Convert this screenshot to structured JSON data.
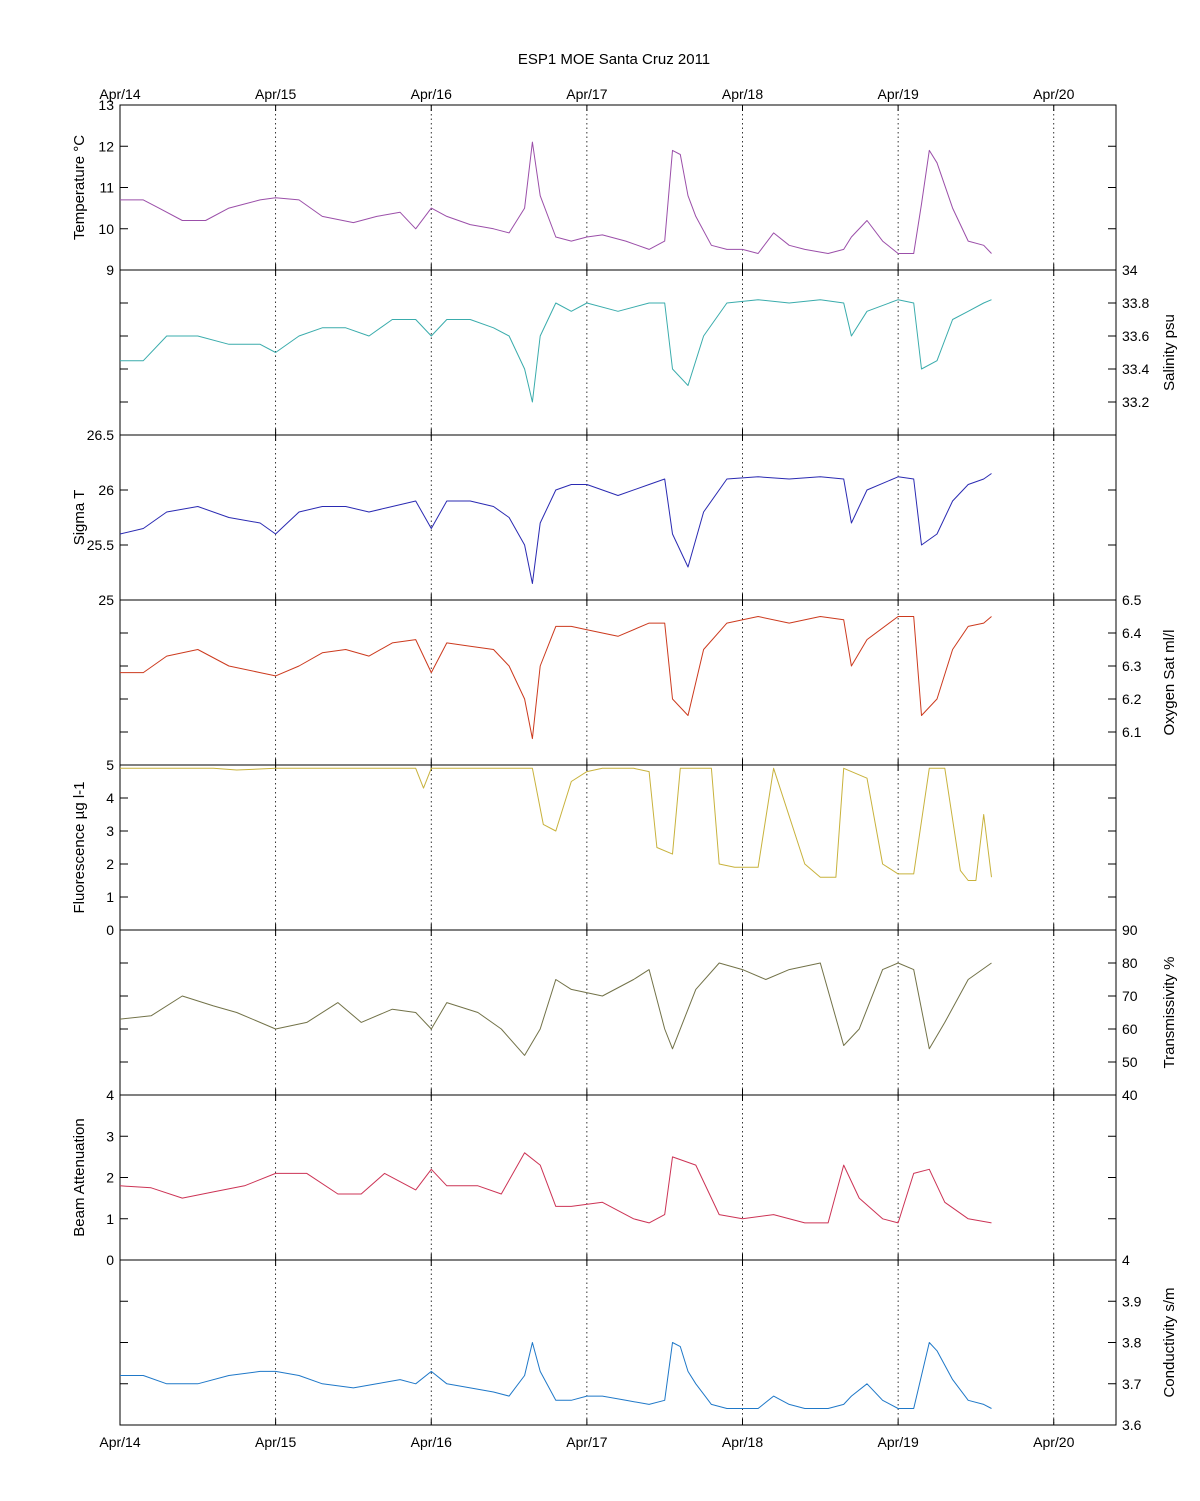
{
  "chart_data": {
    "type": "line",
    "title": "ESP1 MOE Santa Cruz   2011",
    "x_tick_labels": [
      "Apr/14",
      "Apr/15",
      "Apr/16",
      "Apr/17",
      "Apr/18",
      "Apr/19",
      "Apr/20"
    ],
    "x_range_days": [
      0,
      6.4
    ],
    "grid": "vertical dotted at each day",
    "panels": [
      {
        "id": "temperature",
        "ylabel": "Temperature °C",
        "axis_side": "left",
        "ylim": [
          9,
          13
        ],
        "ticks": [
          9,
          10,
          11,
          12,
          13
        ],
        "color": "#9b4fa9",
        "x": [
          0,
          0.15,
          0.25,
          0.4,
          0.55,
          0.7,
          0.8,
          0.9,
          1.0,
          1.15,
          1.3,
          1.5,
          1.65,
          1.8,
          1.9,
          2.0,
          2.1,
          2.25,
          2.4,
          2.5,
          2.6,
          2.65,
          2.7,
          2.8,
          2.9,
          3.0,
          3.1,
          3.25,
          3.4,
          3.5,
          3.55,
          3.6,
          3.65,
          3.7,
          3.8,
          3.9,
          4.0,
          4.1,
          4.2,
          4.3,
          4.4,
          4.55,
          4.65,
          4.7,
          4.8,
          4.9,
          5.0,
          5.1,
          5.15,
          5.2,
          5.25,
          5.35,
          5.45,
          5.55,
          5.6
        ],
        "y": [
          10.7,
          10.7,
          10.5,
          10.2,
          10.2,
          10.5,
          10.6,
          10.7,
          10.75,
          10.7,
          10.3,
          10.15,
          10.3,
          10.4,
          10.0,
          10.5,
          10.3,
          10.1,
          10.0,
          9.9,
          10.5,
          12.1,
          10.8,
          9.8,
          9.7,
          9.8,
          9.85,
          9.7,
          9.5,
          9.7,
          11.9,
          11.8,
          10.8,
          10.3,
          9.6,
          9.5,
          9.5,
          9.4,
          9.9,
          9.6,
          9.5,
          9.4,
          9.5,
          9.8,
          10.2,
          9.7,
          9.4,
          9.4,
          10.6,
          11.9,
          11.6,
          10.5,
          9.7,
          9.6,
          9.4
        ]
      },
      {
        "id": "salinity",
        "ylabel": "Salinity psu",
        "axis_side": "right",
        "ylim": [
          33,
          34
        ],
        "ticks": [
          33.2,
          33.4,
          33.6,
          33.8,
          34
        ],
        "color": "#3aacac",
        "x": [
          0,
          0.15,
          0.3,
          0.5,
          0.7,
          0.9,
          1.0,
          1.15,
          1.3,
          1.45,
          1.6,
          1.75,
          1.9,
          2.0,
          2.1,
          2.25,
          2.4,
          2.5,
          2.6,
          2.65,
          2.7,
          2.8,
          2.9,
          3.0,
          3.2,
          3.4,
          3.5,
          3.55,
          3.65,
          3.75,
          3.9,
          4.1,
          4.3,
          4.5,
          4.65,
          4.7,
          4.8,
          5.0,
          5.1,
          5.15,
          5.25,
          5.35,
          5.45,
          5.55,
          5.6
        ],
        "y": [
          33.45,
          33.45,
          33.6,
          33.6,
          33.55,
          33.55,
          33.5,
          33.6,
          33.65,
          33.65,
          33.6,
          33.7,
          33.7,
          33.6,
          33.7,
          33.7,
          33.65,
          33.6,
          33.4,
          33.2,
          33.6,
          33.8,
          33.75,
          33.8,
          33.75,
          33.8,
          33.8,
          33.4,
          33.3,
          33.6,
          33.8,
          33.82,
          33.8,
          33.82,
          33.8,
          33.6,
          33.75,
          33.82,
          33.8,
          33.4,
          33.45,
          33.7,
          33.75,
          33.8,
          33.82
        ]
      },
      {
        "id": "sigma-t",
        "ylabel": "Sigma T",
        "axis_side": "left",
        "ylim": [
          25,
          26.5
        ],
        "ticks": [
          25,
          25.5,
          26,
          26.5
        ],
        "color": "#2a2ab2",
        "x": [
          0,
          0.15,
          0.3,
          0.5,
          0.7,
          0.9,
          1.0,
          1.15,
          1.3,
          1.45,
          1.6,
          1.75,
          1.9,
          2.0,
          2.1,
          2.25,
          2.4,
          2.5,
          2.6,
          2.65,
          2.7,
          2.8,
          2.9,
          3.0,
          3.2,
          3.4,
          3.5,
          3.55,
          3.65,
          3.75,
          3.9,
          4.1,
          4.3,
          4.5,
          4.65,
          4.7,
          4.8,
          5.0,
          5.1,
          5.15,
          5.25,
          5.35,
          5.45,
          5.55,
          5.6
        ],
        "y": [
          25.6,
          25.65,
          25.8,
          25.85,
          25.75,
          25.7,
          25.6,
          25.8,
          25.85,
          25.85,
          25.8,
          25.85,
          25.9,
          25.65,
          25.9,
          25.9,
          25.85,
          25.75,
          25.5,
          25.15,
          25.7,
          26.0,
          26.05,
          26.05,
          25.95,
          26.05,
          26.1,
          25.6,
          25.3,
          25.8,
          26.1,
          26.12,
          26.1,
          26.12,
          26.1,
          25.7,
          26.0,
          26.12,
          26.1,
          25.5,
          25.6,
          25.9,
          26.05,
          26.1,
          26.15
        ]
      },
      {
        "id": "oxygen",
        "ylabel": "Oxygen Sat ml/l",
        "axis_side": "right",
        "ylim": [
          6,
          6.5
        ],
        "ticks": [
          6.1,
          6.2,
          6.3,
          6.4,
          6.5
        ],
        "color": "#cc3a1e",
        "x": [
          0,
          0.15,
          0.3,
          0.5,
          0.7,
          0.9,
          1.0,
          1.15,
          1.3,
          1.45,
          1.6,
          1.75,
          1.9,
          2.0,
          2.1,
          2.25,
          2.4,
          2.5,
          2.6,
          2.65,
          2.7,
          2.8,
          2.9,
          3.0,
          3.2,
          3.4,
          3.5,
          3.55,
          3.65,
          3.75,
          3.9,
          4.1,
          4.3,
          4.5,
          4.65,
          4.7,
          4.8,
          5.0,
          5.1,
          5.15,
          5.25,
          5.35,
          5.45,
          5.55,
          5.6
        ],
        "y": [
          6.28,
          6.28,
          6.33,
          6.35,
          6.3,
          6.28,
          6.27,
          6.3,
          6.34,
          6.35,
          6.33,
          6.37,
          6.38,
          6.28,
          6.37,
          6.36,
          6.35,
          6.3,
          6.2,
          6.08,
          6.3,
          6.42,
          6.42,
          6.41,
          6.39,
          6.43,
          6.43,
          6.2,
          6.15,
          6.35,
          6.43,
          6.45,
          6.43,
          6.45,
          6.44,
          6.3,
          6.38,
          6.45,
          6.45,
          6.15,
          6.2,
          6.35,
          6.42,
          6.43,
          6.45
        ]
      },
      {
        "id": "fluorescence",
        "ylabel": "Fluorescence µg l-1",
        "axis_side": "left",
        "ylim": [
          0,
          5
        ],
        "ticks": [
          0,
          1,
          2,
          3,
          4,
          5
        ],
        "color": "#c8b23c",
        "x": [
          0,
          0.6,
          0.75,
          1.0,
          1.9,
          1.95,
          2.0,
          2.5,
          2.65,
          2.72,
          2.8,
          2.9,
          3.0,
          3.1,
          3.3,
          3.4,
          3.45,
          3.55,
          3.6,
          3.8,
          3.85,
          3.95,
          4.1,
          4.2,
          4.4,
          4.5,
          4.6,
          4.65,
          4.8,
          4.9,
          5.0,
          5.1,
          5.2,
          5.3,
          5.4,
          5.45,
          5.5,
          5.55,
          5.6
        ],
        "y": [
          4.9,
          4.9,
          4.85,
          4.9,
          4.9,
          4.3,
          4.9,
          4.9,
          4.9,
          3.2,
          3.0,
          4.5,
          4.8,
          4.9,
          4.9,
          4.8,
          2.5,
          2.3,
          4.9,
          4.9,
          2.0,
          1.9,
          1.9,
          4.9,
          2.0,
          1.6,
          1.6,
          4.9,
          4.6,
          2.0,
          1.7,
          1.7,
          4.9,
          4.9,
          1.8,
          1.5,
          1.5,
          3.5,
          1.6
        ]
      },
      {
        "id": "transmissivity",
        "ylabel": "Transmissivity %",
        "axis_side": "right",
        "ylim": [
          40,
          90
        ],
        "ticks": [
          40,
          50,
          60,
          70,
          80,
          90
        ],
        "color": "#727248",
        "x": [
          0,
          0.2,
          0.4,
          0.6,
          0.75,
          1.0,
          1.2,
          1.4,
          1.55,
          1.75,
          1.9,
          2.0,
          2.1,
          2.3,
          2.45,
          2.6,
          2.7,
          2.8,
          2.9,
          3.1,
          3.3,
          3.4,
          3.5,
          3.55,
          3.7,
          3.85,
          4.0,
          4.15,
          4.3,
          4.5,
          4.65,
          4.75,
          4.9,
          5.0,
          5.1,
          5.2,
          5.3,
          5.45,
          5.6
        ],
        "y": [
          63,
          64,
          70,
          67,
          65,
          60,
          62,
          68,
          62,
          66,
          65,
          60,
          68,
          65,
          60,
          52,
          60,
          75,
          72,
          70,
          75,
          78,
          60,
          54,
          72,
          80,
          78,
          75,
          78,
          80,
          55,
          60,
          78,
          80,
          78,
          54,
          62,
          75,
          80
        ]
      },
      {
        "id": "beam-attenuation",
        "ylabel": "Beam Attenuation",
        "axis_side": "left",
        "ylim": [
          0,
          4
        ],
        "ticks": [
          0,
          1,
          2,
          3,
          4
        ],
        "color": "#cc3355",
        "x": [
          0,
          0.2,
          0.4,
          0.6,
          0.8,
          1.0,
          1.2,
          1.4,
          1.55,
          1.7,
          1.9,
          2.0,
          2.1,
          2.3,
          2.45,
          2.6,
          2.7,
          2.8,
          2.9,
          3.1,
          3.3,
          3.4,
          3.5,
          3.55,
          3.7,
          3.85,
          4.0,
          4.2,
          4.4,
          4.55,
          4.65,
          4.75,
          4.9,
          5.0,
          5.1,
          5.2,
          5.3,
          5.45,
          5.6
        ],
        "y": [
          1.8,
          1.75,
          1.5,
          1.65,
          1.8,
          2.1,
          2.1,
          1.6,
          1.6,
          2.1,
          1.7,
          2.2,
          1.8,
          1.8,
          1.6,
          2.6,
          2.3,
          1.3,
          1.3,
          1.4,
          1.0,
          0.9,
          1.1,
          2.5,
          2.3,
          1.1,
          1.0,
          1.1,
          0.9,
          0.9,
          2.3,
          1.5,
          1.0,
          0.9,
          2.1,
          2.2,
          1.4,
          1.0,
          0.9
        ]
      },
      {
        "id": "conductivity",
        "ylabel": "Conductivity s/m",
        "axis_side": "right",
        "ylim": [
          3.6,
          4
        ],
        "ticks": [
          3.6,
          3.7,
          3.8,
          3.9,
          4
        ],
        "color": "#1f78c8",
        "x": [
          0,
          0.15,
          0.3,
          0.5,
          0.7,
          0.9,
          1.0,
          1.15,
          1.3,
          1.5,
          1.65,
          1.8,
          1.9,
          2.0,
          2.1,
          2.25,
          2.4,
          2.5,
          2.6,
          2.65,
          2.7,
          2.8,
          2.9,
          3.0,
          3.1,
          3.25,
          3.4,
          3.5,
          3.55,
          3.6,
          3.65,
          3.7,
          3.8,
          3.9,
          4.0,
          4.1,
          4.2,
          4.3,
          4.4,
          4.55,
          4.65,
          4.7,
          4.8,
          4.9,
          5.0,
          5.1,
          5.15,
          5.2,
          5.25,
          5.35,
          5.45,
          5.55,
          5.6
        ],
        "y": [
          3.72,
          3.72,
          3.7,
          3.7,
          3.72,
          3.73,
          3.73,
          3.72,
          3.7,
          3.69,
          3.7,
          3.71,
          3.7,
          3.73,
          3.7,
          3.69,
          3.68,
          3.67,
          3.72,
          3.8,
          3.73,
          3.66,
          3.66,
          3.67,
          3.67,
          3.66,
          3.65,
          3.66,
          3.8,
          3.79,
          3.73,
          3.7,
          3.65,
          3.64,
          3.64,
          3.64,
          3.67,
          3.65,
          3.64,
          3.64,
          3.65,
          3.67,
          3.7,
          3.66,
          3.64,
          3.64,
          3.72,
          3.8,
          3.78,
          3.71,
          3.66,
          3.65,
          3.64
        ]
      }
    ]
  }
}
